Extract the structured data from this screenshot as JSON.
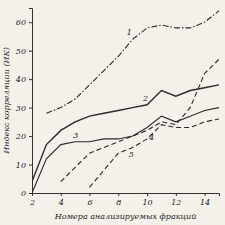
{
  "chart_data": {
    "type": "line",
    "x_label": "Номера анализируемых фракций",
    "y_label": "Индекс корреляции (ИК)",
    "x": [
      2,
      3,
      4,
      5,
      6,
      7,
      8,
      9,
      10,
      11,
      12,
      13,
      14,
      15
    ],
    "xlim": [
      2,
      15
    ],
    "xticks": [
      2,
      4,
      6,
      8,
      10,
      12,
      14
    ],
    "ylim": [
      0,
      65
    ],
    "yticks": [
      0,
      10,
      20,
      30,
      40,
      50,
      60
    ],
    "grid": false,
    "series": [
      {
        "name": "1",
        "color": "#2a2a2a",
        "line_style": "dashdot",
        "values": [
          null,
          28,
          30,
          33,
          38,
          43,
          48,
          54,
          58,
          59,
          58,
          58,
          60,
          64
        ]
      },
      {
        "name": "2",
        "color": "#2a2a2a",
        "line_style": "solid",
        "values": [
          4,
          17,
          22,
          25,
          27,
          28,
          29,
          30,
          31,
          36,
          34,
          36,
          37,
          38
        ]
      },
      {
        "name": "3",
        "color": "#2a2a2a",
        "line_style": "solid",
        "values": [
          0,
          12,
          17,
          18,
          18,
          19,
          19,
          20,
          23,
          27,
          25,
          27,
          29,
          30
        ]
      },
      {
        "name": "4",
        "color": "#2a2a2a",
        "line_style": "dashed",
        "values": [
          null,
          null,
          4,
          9,
          14,
          16,
          18,
          20,
          22,
          25,
          24,
          30,
          42,
          47
        ]
      },
      {
        "name": "5",
        "color": "#2a2a2a",
        "line_style": "dashed",
        "values": [
          null,
          null,
          null,
          null,
          2,
          8,
          14,
          16,
          19,
          24,
          23,
          23,
          25,
          26
        ]
      }
    ]
  }
}
